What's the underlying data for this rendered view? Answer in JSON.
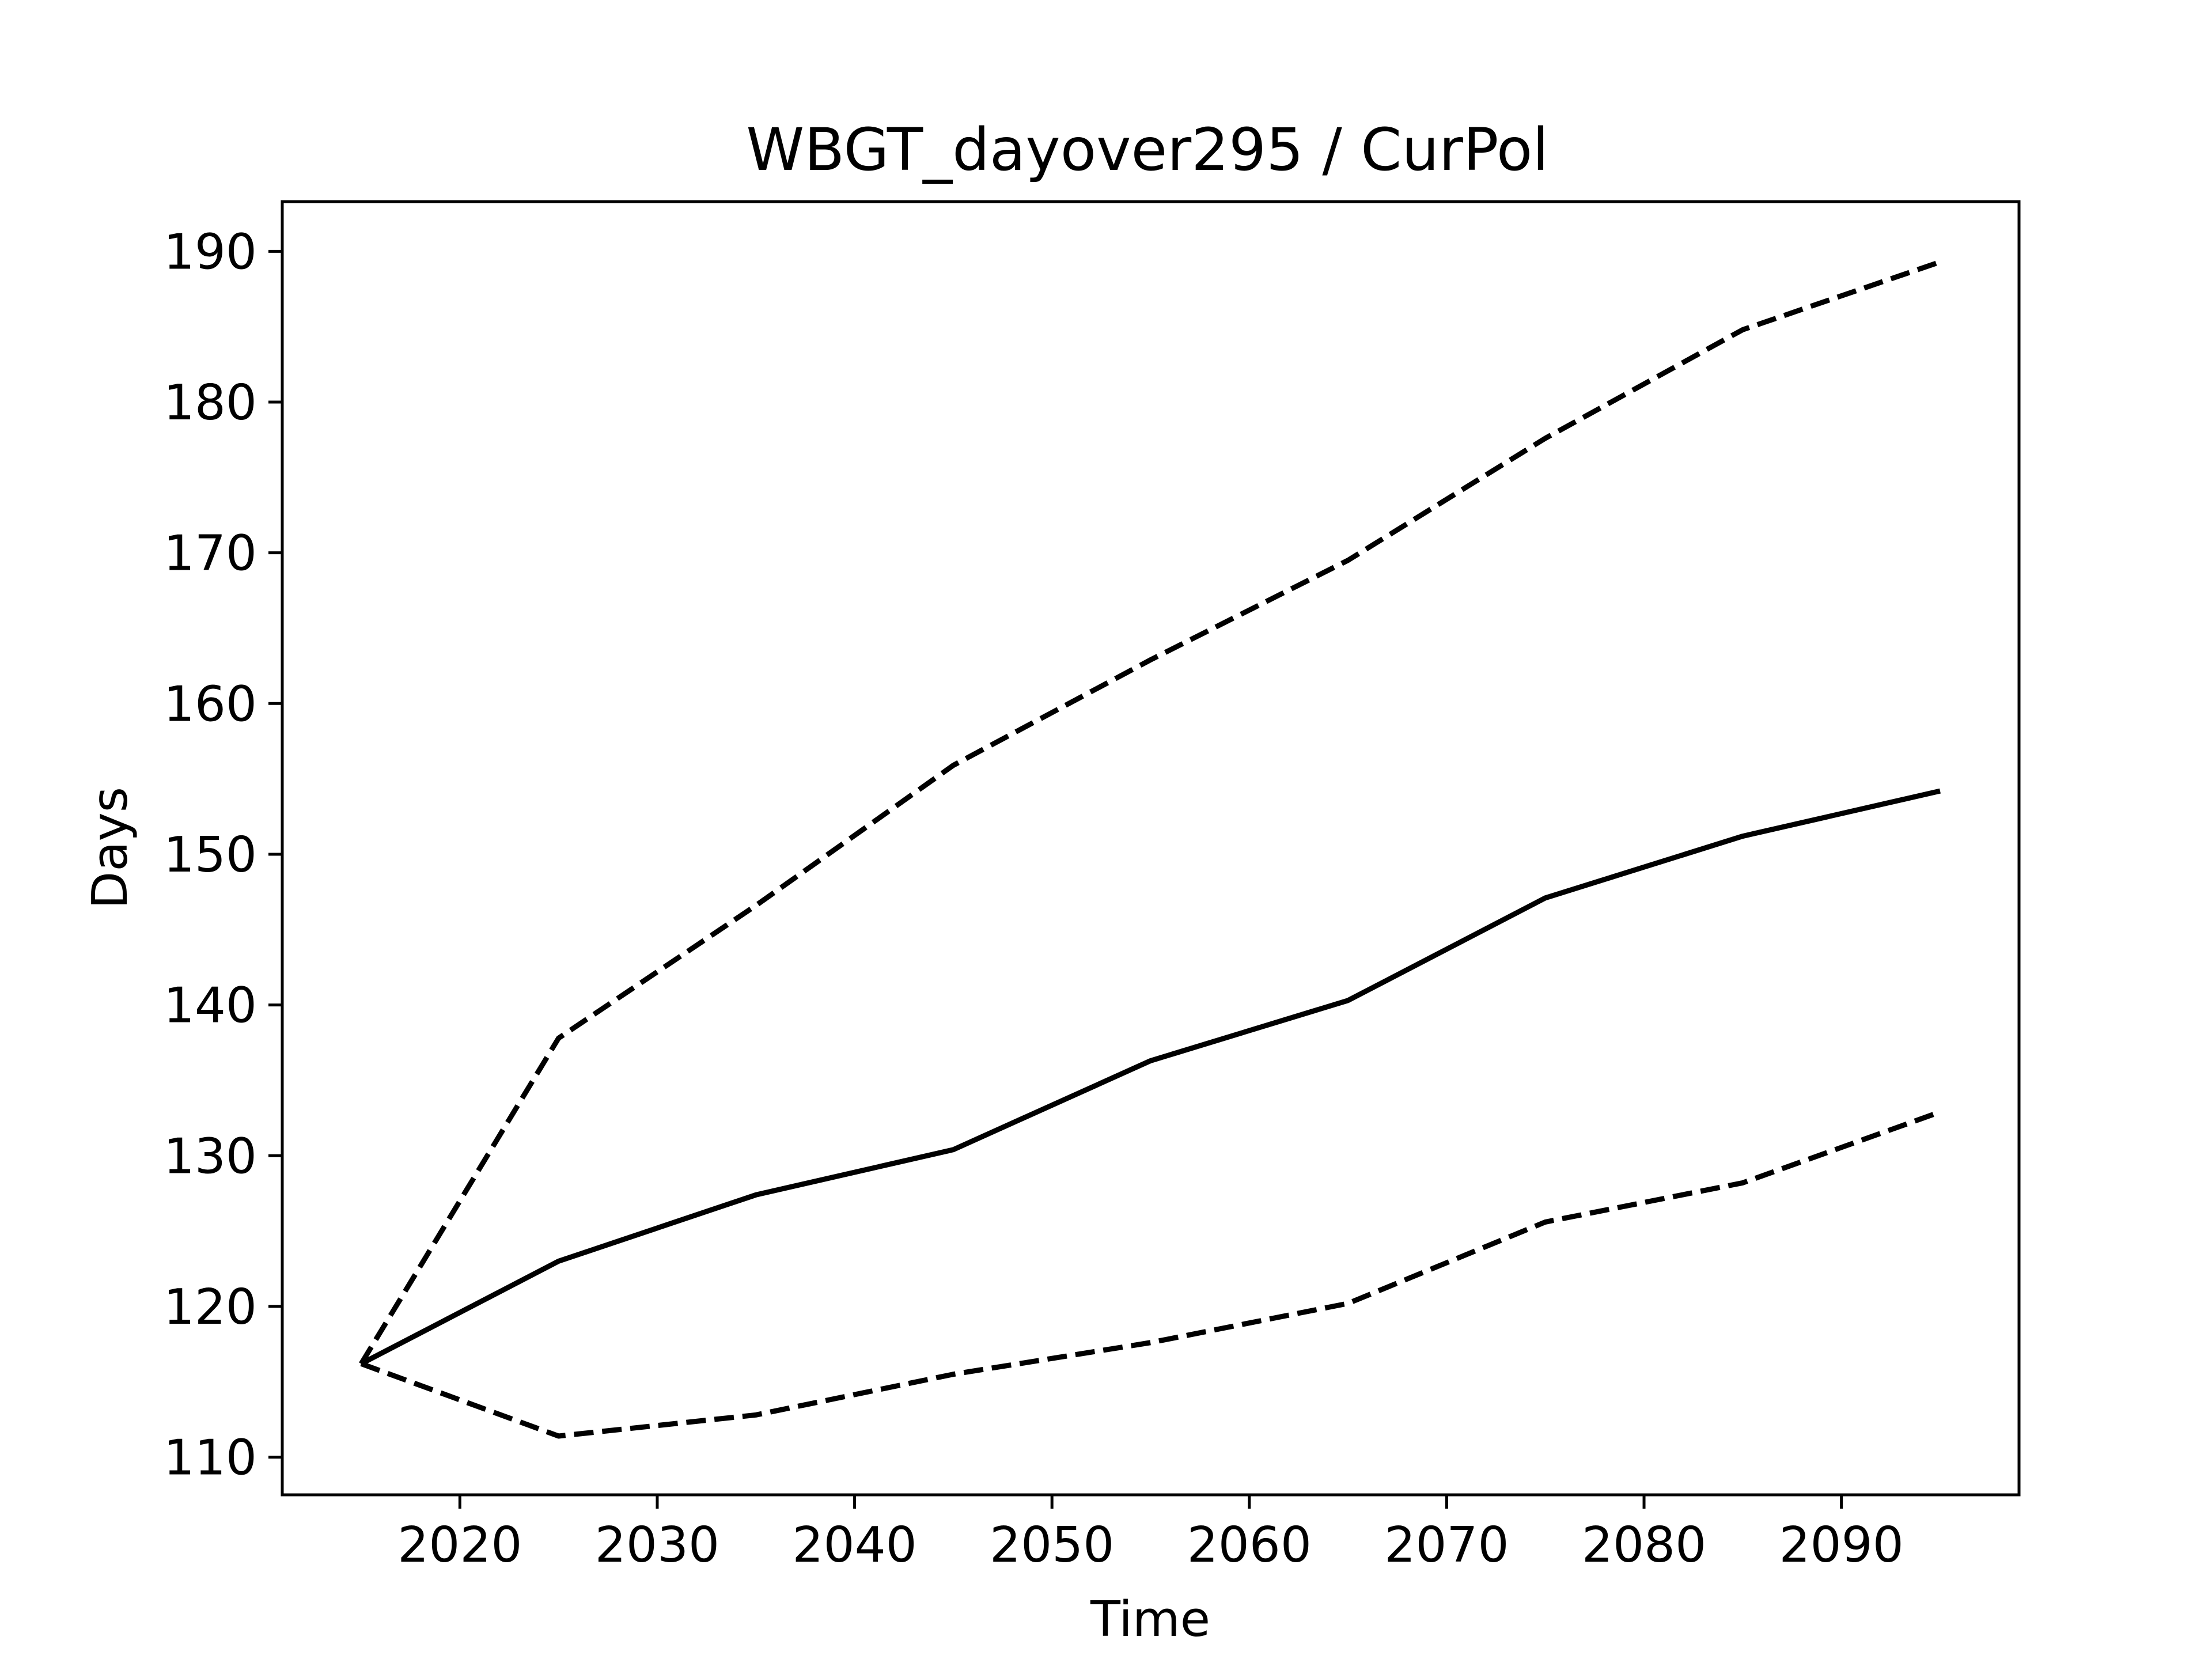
{
  "chart_data": {
    "type": "line",
    "title": "WBGT_dayover295 / CurPol",
    "xlabel": "Time",
    "ylabel": "Days",
    "xlim": [
      2011,
      2099
    ],
    "ylim": [
      107.5,
      193.3
    ],
    "xticks": [
      2020,
      2030,
      2040,
      2050,
      2060,
      2070,
      2080,
      2090
    ],
    "yticks": [
      110,
      120,
      130,
      140,
      150,
      160,
      170,
      180,
      190
    ],
    "grid": false,
    "legend": false,
    "x": [
      2015,
      2025,
      2035,
      2045,
      2055,
      2065,
      2075,
      2085,
      2095
    ],
    "series": [
      {
        "style": "dashed",
        "color": "#000000",
        "values": [
          116.2,
          137.8,
          146.6,
          155.9,
          162.9,
          169.5,
          177.6,
          184.8,
          189.3
        ]
      },
      {
        "style": "solid",
        "color": "#000000",
        "values": [
          116.2,
          123.0,
          127.4,
          130.4,
          136.3,
          140.3,
          147.1,
          151.2,
          154.2
        ]
      },
      {
        "style": "dashed",
        "color": "#000000",
        "values": [
          116.2,
          111.4,
          112.8,
          115.5,
          117.6,
          120.2,
          125.6,
          128.2,
          132.9
        ]
      }
    ]
  }
}
